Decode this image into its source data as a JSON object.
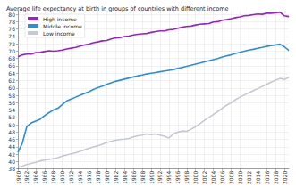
{
  "chart_data": {
    "type": "line",
    "title": "Average life expectancy at birth in groups of countries with different income",
    "x": [
      1960,
      1961,
      1962,
      1963,
      1964,
      1965,
      1966,
      1967,
      1968,
      1969,
      1970,
      1971,
      1972,
      1973,
      1974,
      1975,
      1976,
      1977,
      1978,
      1979,
      1980,
      1981,
      1982,
      1983,
      1984,
      1985,
      1986,
      1987,
      1988,
      1989,
      1990,
      1991,
      1992,
      1993,
      1994,
      1995,
      1996,
      1997,
      1998,
      1999,
      2000,
      2001,
      2002,
      2003,
      2004,
      2005,
      2006,
      2007,
      2008,
      2009,
      2010,
      2011,
      2012,
      2013,
      2014,
      2015,
      2016,
      2017,
      2018,
      2019,
      2020,
      2021
    ],
    "series": [
      {
        "name": "High income",
        "color": "#9b1fc8",
        "values": [
          68.5,
          69.0,
          69.2,
          69.2,
          69.6,
          69.7,
          69.9,
          70.1,
          70.0,
          70.1,
          70.3,
          70.6,
          70.8,
          71.0,
          71.4,
          71.7,
          71.9,
          72.3,
          72.5,
          72.8,
          72.9,
          73.3,
          73.6,
          73.7,
          74.0,
          74.1,
          74.4,
          74.6,
          74.7,
          74.8,
          75.1,
          75.3,
          75.5,
          75.5,
          75.8,
          75.9,
          76.2,
          76.5,
          76.7,
          76.8,
          77.1,
          77.3,
          77.4,
          77.5,
          77.9,
          78.0,
          78.4,
          78.6,
          78.8,
          79.1,
          79.3,
          79.6,
          79.7,
          79.9,
          80.1,
          80.0,
          80.3,
          80.3,
          80.4,
          80.6,
          79.6,
          79.4
        ]
      },
      {
        "name": "Middle income",
        "color": "#2b8de0",
        "values": [
          42.5,
          45,
          49.5,
          50.5,
          51,
          51.5,
          52.5,
          53.3,
          54,
          54.5,
          55.5,
          56.5,
          57,
          57.5,
          58,
          58.5,
          59,
          59.6,
          60.1,
          60.5,
          61,
          61.4,
          61.8,
          62.1,
          62.4,
          62.7,
          63,
          63.3,
          63.5,
          63.8,
          64,
          64.2,
          64.4,
          64.6,
          64.8,
          65,
          65.3,
          65.6,
          65.9,
          66.2,
          66.5,
          66.8,
          67.1,
          67.4,
          67.7,
          68,
          68.4,
          68.7,
          69,
          69.4,
          69.7,
          70,
          70.3,
          70.5,
          70.8,
          71,
          71.3,
          71.5,
          71.7,
          71.9,
          71.2,
          70.2
        ]
      },
      {
        "name": "Low income",
        "color": "#c5c9d6",
        "values": [
          38.5,
          38.8,
          39.2,
          39.5,
          39.8,
          40.2,
          40.4,
          40.6,
          40.8,
          41.1,
          41.5,
          41.8,
          42.1,
          42.4,
          42.8,
          43.2,
          43.6,
          44,
          44.3,
          44.7,
          45.2,
          45.5,
          45.8,
          46,
          46.1,
          46.3,
          46.7,
          47,
          47.2,
          47.5,
          47.3,
          47.5,
          47.2,
          46.9,
          46.4,
          47.5,
          48,
          48.3,
          48.2,
          48.8,
          49.5,
          50.3,
          51.2,
          52,
          52.8,
          53.6,
          54.5,
          55.3,
          56,
          56.8,
          57.5,
          58.1,
          58.7,
          59.3,
          59.8,
          60.4,
          61,
          61.6,
          62.1,
          62.6,
          62.3,
          62.9
        ]
      }
    ],
    "xlim": [
      1960,
      2021
    ],
    "xticks": [
      1960,
      1962,
      1964,
      1966,
      1968,
      1970,
      1972,
      1974,
      1976,
      1978,
      1980,
      1982,
      1984,
      1986,
      1988,
      1990,
      1992,
      1994,
      1996,
      1998,
      2000,
      2002,
      2004,
      2006,
      2008,
      2010,
      2012,
      2014,
      2016,
      2018,
      2020
    ],
    "ylim": [
      38,
      81
    ],
    "yticks": [
      38,
      40,
      42,
      44,
      46,
      48,
      50,
      52,
      54,
      56,
      58,
      60,
      62,
      64,
      66,
      68,
      70,
      72,
      74,
      76,
      78,
      80
    ],
    "grid": true,
    "legend": "top-left"
  }
}
